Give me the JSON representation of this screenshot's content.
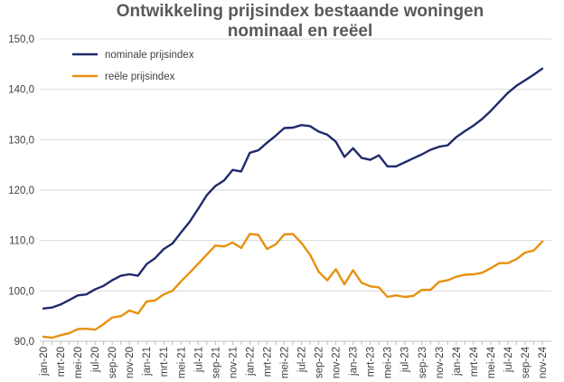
{
  "chart_data": {
    "type": "line",
    "title_line1": "Ontwikkeling prijsindex bestaande woningen",
    "title_line2": "nominaal en reëel",
    "xlabel": "",
    "ylabel": "",
    "ylim": [
      90,
      150
    ],
    "yticks": [
      "90,0",
      "100,0",
      "110,0",
      "120,0",
      "130,0",
      "140,0",
      "150,0"
    ],
    "grid": "horizontal",
    "legend_position": "top-left",
    "x": [
      "jan-20",
      "feb-20",
      "mrt-20",
      "apr-20",
      "mei-20",
      "jun-20",
      "jul-20",
      "aug-20",
      "sep-20",
      "okt-20",
      "nov-20",
      "dec-20",
      "jan-21",
      "feb-21",
      "mrt-21",
      "apr-21",
      "mei-21",
      "jun-21",
      "jul-21",
      "aug-21",
      "sep-21",
      "okt-21",
      "nov-21",
      "dec-21",
      "jan-22",
      "feb-22",
      "mrt-22",
      "apr-22",
      "mei-22",
      "jun-22",
      "jul-22",
      "aug-22",
      "sep-22",
      "okt-22",
      "nov-22",
      "dec-22",
      "jan-23",
      "feb-23",
      "mrt-23",
      "apr-23",
      "mei-23",
      "jun-23",
      "jul-23",
      "aug-23",
      "sep-23",
      "okt-23",
      "nov-23",
      "dec-23",
      "jan-24",
      "feb-24",
      "mrt-24",
      "apr-24",
      "mei-24",
      "jun-24",
      "jul-24",
      "aug-24",
      "sep-24",
      "okt-24",
      "nov-24"
    ],
    "xtick_labels": [
      "jan-20",
      "mrt-20",
      "mei-20",
      "jul-20",
      "sep-20",
      "nov-20",
      "jan-21",
      "mrt-21",
      "mei-21",
      "jul-21",
      "sep-21",
      "nov-21",
      "jan-22",
      "mrt-22",
      "mei-22",
      "jul-22",
      "sep-22",
      "nov-22",
      "jan-23",
      "mrt-23",
      "mei-23",
      "jul-23",
      "sep-23",
      "nov-23",
      "jan-24",
      "mrt-24",
      "mei-24",
      "jul-24",
      "sep-24",
      "nov-24"
    ],
    "series": [
      {
        "name": "nominale prijsindex",
        "color": "#1F2A6B",
        "values": [
          96.5,
          96.7,
          97.3,
          98.2,
          99.1,
          99.3,
          100.3,
          101.0,
          102.1,
          103.0,
          103.3,
          103.0,
          105.3,
          106.5,
          108.3,
          109.4,
          111.6,
          113.7,
          116.3,
          119.0,
          120.8,
          121.9,
          124.0,
          123.7,
          127.4,
          127.9,
          129.4,
          130.8,
          132.3,
          132.4,
          132.9,
          132.7,
          131.6,
          131.0,
          129.6,
          126.6,
          128.3,
          126.4,
          126.0,
          126.9,
          124.7,
          124.7,
          125.5,
          126.3,
          127.1,
          128.0,
          128.6,
          128.9,
          130.5,
          131.7,
          132.8,
          134.1,
          135.7,
          137.5,
          139.3,
          140.7,
          141.8,
          142.9,
          144.1
        ]
      },
      {
        "name": "reële prijsindex",
        "color": "#E8900F",
        "values": [
          90.9,
          90.7,
          91.2,
          91.6,
          92.4,
          92.5,
          92.3,
          93.4,
          94.7,
          95.0,
          96.1,
          95.5,
          97.9,
          98.1,
          99.3,
          100.0,
          101.9,
          103.6,
          105.4,
          107.2,
          109.0,
          108.8,
          109.6,
          108.5,
          111.3,
          111.1,
          108.3,
          109.2,
          111.2,
          111.3,
          109.5,
          107.2,
          103.8,
          102.1,
          104.3,
          101.3,
          104.1,
          101.6,
          100.9,
          100.7,
          98.8,
          99.1,
          98.8,
          99.0,
          100.2,
          100.2,
          101.8,
          102.1,
          102.8,
          103.2,
          103.3,
          103.6,
          104.5,
          105.5,
          105.5,
          106.3,
          107.6,
          108.0,
          109.8
        ]
      }
    ]
  }
}
